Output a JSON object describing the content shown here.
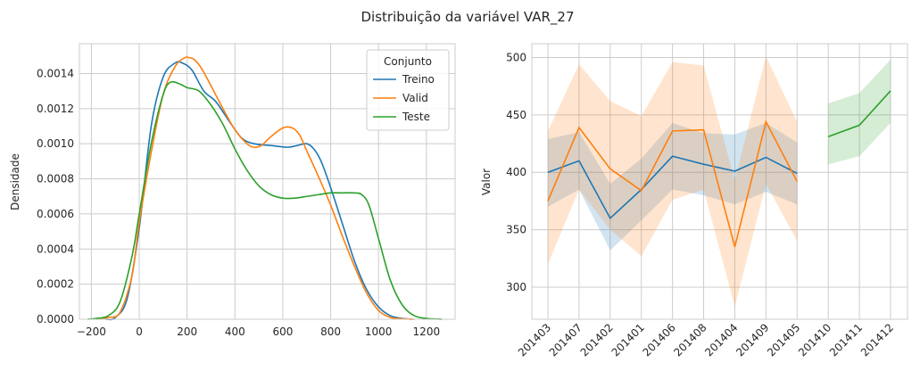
{
  "figure": {
    "title": "Distribuição da variável VAR_27"
  },
  "colors": {
    "Treino": "#1f77b4",
    "Valid": "#ff7f0e",
    "Teste": "#2ca02c"
  },
  "chart_data": [
    {
      "type": "line",
      "subtype": "kde",
      "xlabel": "",
      "ylabel": "Densidade",
      "xlim": [
        -250,
        1320
      ],
      "ylim": [
        0,
        0.00157
      ],
      "xticks": [
        -200,
        0,
        200,
        400,
        600,
        800,
        1000,
        1200
      ],
      "xtick_labels": [
        "−200",
        "0",
        "200",
        "400",
        "600",
        "800",
        "1000",
        "1200"
      ],
      "yticks": [
        0,
        0.0002,
        0.0004,
        0.0006,
        0.0008,
        0.001,
        0.0012,
        0.0014
      ],
      "ytick_labels": [
        "0.0000",
        "0.0002",
        "0.0004",
        "0.0006",
        "0.0008",
        "0.0010",
        "0.0012",
        "0.0014"
      ],
      "grid": true,
      "legend": {
        "title": "Conjunto",
        "position": "top-right",
        "entries": [
          "Treino",
          "Valid",
          "Teste"
        ]
      },
      "series": [
        {
          "name": "Treino",
          "x": [
            -140,
            -100,
            -50,
            0,
            50,
            100,
            150,
            180,
            220,
            270,
            320,
            380,
            430,
            480,
            550,
            620,
            660,
            700,
            730,
            760,
            800,
            850,
            900,
            950,
            1000,
            1050,
            1100,
            1140
          ],
          "y": [
            0,
            1e-05,
            0.00012,
            0.00052,
            0.0011,
            0.00138,
            0.00146,
            0.00146,
            0.00142,
            0.0013,
            0.00124,
            0.00112,
            0.00103,
            0.001,
            0.00099,
            0.00098,
            0.00099,
            0.001,
            0.00097,
            0.0009,
            0.00075,
            0.00054,
            0.00033,
            0.00017,
            7e-05,
            2e-05,
            5e-06,
            0
          ]
        },
        {
          "name": "Valid",
          "x": [
            -180,
            -130,
            -80,
            -30,
            0,
            50,
            100,
            150,
            190,
            210,
            230,
            260,
            300,
            350,
            400,
            450,
            480,
            510,
            550,
            600,
            640,
            670,
            700,
            750,
            800,
            850,
            900,
            950,
            1000,
            1050,
            1100,
            1150
          ],
          "y": [
            0,
            1e-05,
            4e-05,
            0.00025,
            0.00055,
            0.00095,
            0.00128,
            0.00144,
            0.00149,
            0.00149,
            0.00148,
            0.00143,
            0.00133,
            0.0012,
            0.00108,
            0.001,
            0.00098,
            0.00099,
            0.00104,
            0.00109,
            0.00109,
            0.00105,
            0.00096,
            0.00081,
            0.00065,
            0.00047,
            0.0003,
            0.00015,
            5e-05,
            1e-05,
            3e-06,
            0
          ]
        },
        {
          "name": "Teste",
          "x": [
            -215,
            -180,
            -130,
            -80,
            -30,
            0,
            50,
            100,
            130,
            170,
            200,
            250,
            300,
            350,
            400,
            450,
            500,
            550,
            600,
            650,
            700,
            750,
            800,
            850,
            900,
            930,
            960,
            1000,
            1050,
            1100,
            1150,
            1200,
            1265
          ],
          "y": [
            0,
            5e-06,
            2e-05,
            0.0001,
            0.00036,
            0.0006,
            0.001,
            0.00128,
            0.00135,
            0.00134,
            0.00132,
            0.0013,
            0.00122,
            0.00111,
            0.00097,
            0.00085,
            0.00076,
            0.00071,
            0.00069,
            0.00069,
            0.0007,
            0.00071,
            0.00072,
            0.00072,
            0.00072,
            0.00071,
            0.00065,
            0.00046,
            0.00022,
            8e-05,
            2e-05,
            5e-06,
            0
          ]
        }
      ]
    },
    {
      "type": "line",
      "subtype": "line-with-confidence-band",
      "xlabel": "",
      "ylabel": "Valor",
      "categories": [
        "201403",
        "201407",
        "201402",
        "201401",
        "201406",
        "201408",
        "201404",
        "201409",
        "201405",
        "201410",
        "201411",
        "201412"
      ],
      "ylim": [
        272,
        512
      ],
      "yticks": [
        300,
        350,
        400,
        450,
        500
      ],
      "ytick_labels": [
        "300",
        "350",
        "400",
        "450",
        "500"
      ],
      "grid": true,
      "series": [
        {
          "name": "Treino",
          "values": [
            400,
            410,
            360,
            385,
            414,
            407,
            401,
            413,
            399,
            null,
            null,
            null
          ],
          "lower": [
            370,
            385,
            332,
            358,
            385,
            380,
            372,
            383,
            372,
            null,
            null,
            null
          ],
          "upper": [
            429,
            435,
            390,
            412,
            443,
            434,
            433,
            443,
            426,
            null,
            null,
            null
          ]
        },
        {
          "name": "Valid",
          "values": [
            375,
            439,
            403,
            384,
            436,
            437,
            335,
            444,
            392,
            null,
            null,
            null
          ],
          "lower": [
            320,
            385,
            350,
            327,
            376,
            385,
            283,
            390,
            340,
            null,
            null,
            null
          ],
          "upper": [
            436,
            494,
            462,
            449,
            496,
            493,
            393,
            501,
            444,
            null,
            null,
            null
          ]
        },
        {
          "name": "Teste",
          "values": [
            null,
            null,
            null,
            null,
            null,
            null,
            null,
            null,
            null,
            431,
            441,
            471
          ],
          "lower": [
            null,
            null,
            null,
            null,
            null,
            null,
            null,
            null,
            null,
            407,
            414,
            443
          ],
          "upper": [
            null,
            null,
            null,
            null,
            null,
            null,
            null,
            null,
            null,
            460,
            469,
            498
          ]
        }
      ]
    }
  ]
}
